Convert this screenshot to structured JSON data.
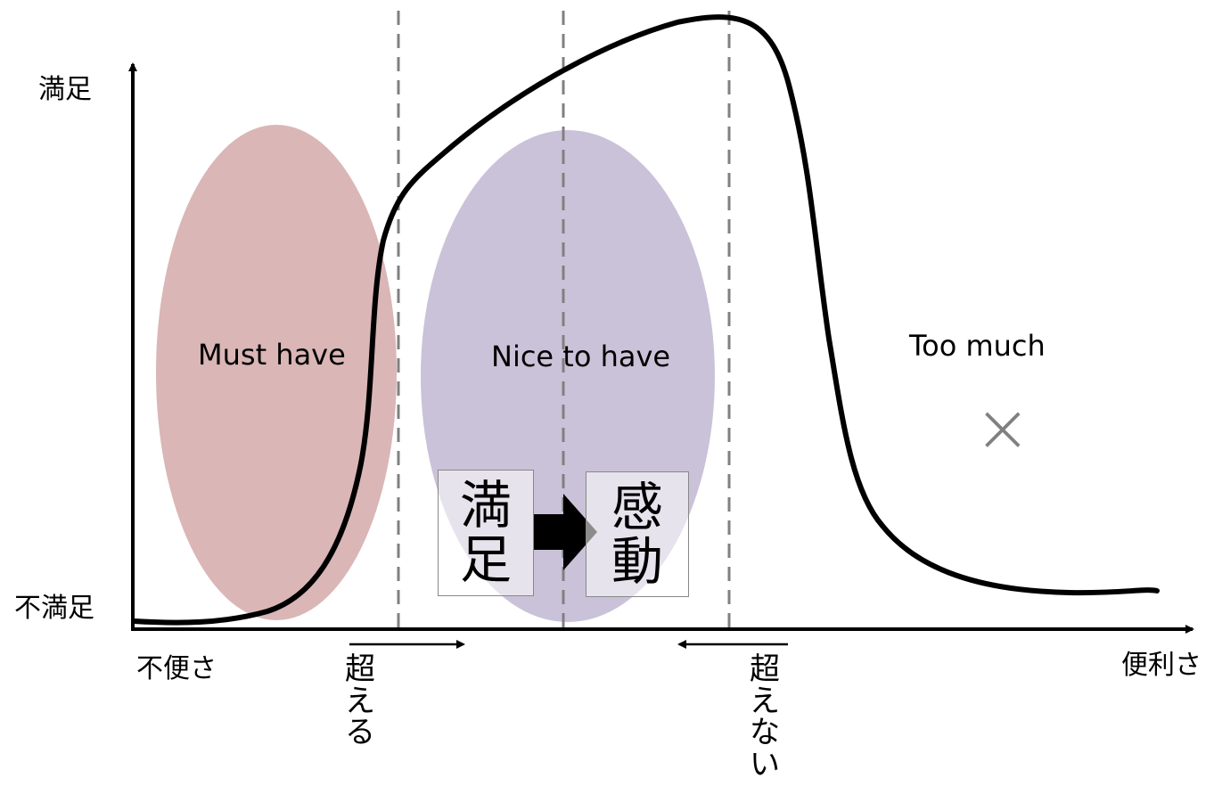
{
  "y_axis": {
    "top_label": "満足",
    "bottom_label": "不満足"
  },
  "x_axis": {
    "left_label": "不便さ",
    "right_label": "便利さ"
  },
  "zones": {
    "must_have": "Must have",
    "nice_to_have": "Nice to have",
    "too_much": "Too much"
  },
  "markers": {
    "exceed": "超える",
    "not_exceed": "超えない",
    "too_much_symbol": "×"
  },
  "transition": {
    "from": "満足",
    "to": "感動"
  },
  "colors": {
    "must_have_fill": "#d8b2b2",
    "nice_to_have_fill": "#c7bfd6",
    "curve": "#000000",
    "dashed_guides": "#808080"
  }
}
